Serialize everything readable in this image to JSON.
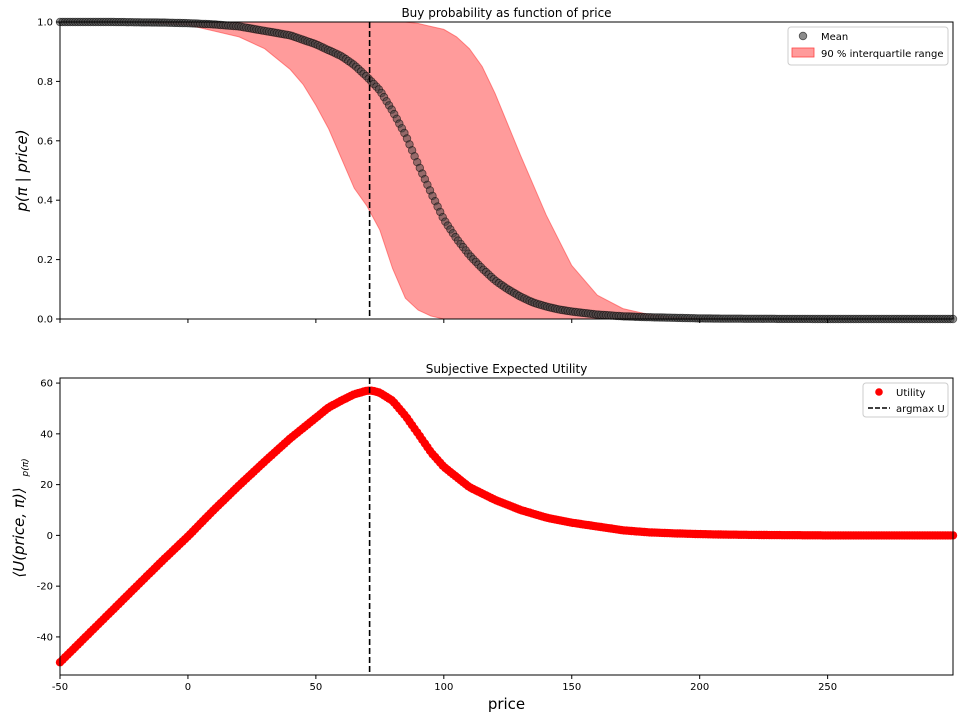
{
  "chart_data": [
    {
      "type": "scatter",
      "title": "Buy probability as function of price",
      "xlabel": "",
      "ylabel": "p(π | price)",
      "xlim": [
        -50,
        299
      ],
      "ylim": [
        0,
        1
      ],
      "x_ticks": [
        -50,
        0,
        50,
        100,
        150,
        200,
        250
      ],
      "y_ticks": [
        "0.0",
        "0.2",
        "0.4",
        "0.6",
        "0.8",
        "1.0"
      ],
      "x_tick_labels_visible": false,
      "legend": {
        "placement": "top-right",
        "entries": [
          "Mean",
          "90 % interquartile range"
        ]
      },
      "series": [
        {
          "name": "Mean",
          "kind": "points",
          "color": "#404040",
          "x": [
            -50,
            -40,
            -30,
            -20,
            -10,
            0,
            10,
            20,
            30,
            40,
            50,
            60,
            65,
            70,
            75,
            80,
            85,
            90,
            95,
            100,
            105,
            110,
            115,
            120,
            125,
            130,
            135,
            140,
            145,
            150,
            160,
            170,
            180,
            190,
            200,
            210,
            230,
            250,
            270,
            299
          ],
          "y": [
            1.0,
            1.0,
            1.0,
            0.999,
            0.998,
            0.996,
            0.992,
            0.985,
            0.97,
            0.955,
            0.925,
            0.885,
            0.855,
            0.815,
            0.77,
            0.7,
            0.62,
            0.52,
            0.425,
            0.335,
            0.27,
            0.215,
            0.17,
            0.13,
            0.1,
            0.075,
            0.055,
            0.042,
            0.032,
            0.025,
            0.015,
            0.009,
            0.006,
            0.004,
            0.002,
            0.001,
            0.0005,
            0.0,
            0.0,
            0.0
          ]
        },
        {
          "name": "90 % interquartile range",
          "kind": "band",
          "color": "#ff6666",
          "x": [
            -50,
            -20,
            0,
            10,
            20,
            30,
            40,
            45,
            50,
            55,
            60,
            65,
            70,
            75,
            80,
            85,
            90,
            95,
            100,
            105,
            110,
            115,
            120,
            130,
            140,
            150,
            160,
            170,
            180,
            190,
            200,
            220,
            299
          ],
          "lower": [
            1.0,
            1.0,
            0.99,
            0.97,
            0.95,
            0.91,
            0.84,
            0.79,
            0.72,
            0.64,
            0.54,
            0.44,
            0.38,
            0.3,
            0.17,
            0.07,
            0.03,
            0.01,
            0.0,
            0.0,
            0.0,
            0.0,
            0.0,
            0.0,
            0.0,
            0.0,
            0.0,
            0.0,
            0.0,
            0.0,
            0.0,
            0.0,
            0.0
          ],
          "upper": [
            1.0,
            1.0,
            1.0,
            1.0,
            1.0,
            1.0,
            1.0,
            1.0,
            1.0,
            1.0,
            1.0,
            1.0,
            1.0,
            1.0,
            1.0,
            1.0,
            0.995,
            0.985,
            0.975,
            0.95,
            0.91,
            0.85,
            0.76,
            0.55,
            0.35,
            0.18,
            0.08,
            0.035,
            0.015,
            0.006,
            0.002,
            0.0,
            0.0
          ]
        }
      ],
      "vline": {
        "x": 71,
        "style": "dashed",
        "color": "#000000"
      }
    },
    {
      "type": "scatter",
      "title": "Subjective Expected Utility",
      "xlabel": "price",
      "ylabel": "⟨U(price, π)⟩",
      "ylabel_sub": "p(π)",
      "xlim": [
        -50,
        299
      ],
      "ylim": [
        -55,
        62
      ],
      "x_ticks": [
        -50,
        0,
        50,
        100,
        150,
        200,
        250
      ],
      "y_ticks": [
        -40,
        -20,
        0,
        20,
        40,
        60
      ],
      "legend": {
        "placement": "top-right",
        "entries": [
          "Utility",
          "argmax U"
        ]
      },
      "series": [
        {
          "name": "Utility",
          "kind": "points",
          "color": "#ff0000",
          "x": [
            -50,
            -40,
            -30,
            -20,
            -10,
            0,
            10,
            20,
            30,
            40,
            50,
            55,
            60,
            65,
            70,
            72,
            75,
            80,
            85,
            90,
            95,
            100,
            105,
            110,
            115,
            120,
            125,
            130,
            140,
            150,
            160,
            170,
            180,
            190,
            200,
            210,
            230,
            250,
            270,
            299
          ],
          "y": [
            -50,
            -40,
            -30,
            -20,
            -10,
            -0.4,
            9.9,
            19.7,
            29.1,
            38.2,
            46.3,
            50.4,
            53.1,
            55.6,
            57.0,
            57.0,
            56.2,
            53.0,
            47.1,
            40.0,
            32.7,
            27.0,
            23.0,
            19.0,
            16.5,
            14.0,
            12.0,
            10.0,
            7.0,
            5.0,
            3.5,
            2.0,
            1.2,
            0.8,
            0.5,
            0.3,
            0.1,
            0.0,
            0.0,
            0.0
          ]
        }
      ],
      "vline": {
        "name": "argmax U",
        "x": 71,
        "style": "dashed",
        "color": "#000000"
      }
    }
  ]
}
